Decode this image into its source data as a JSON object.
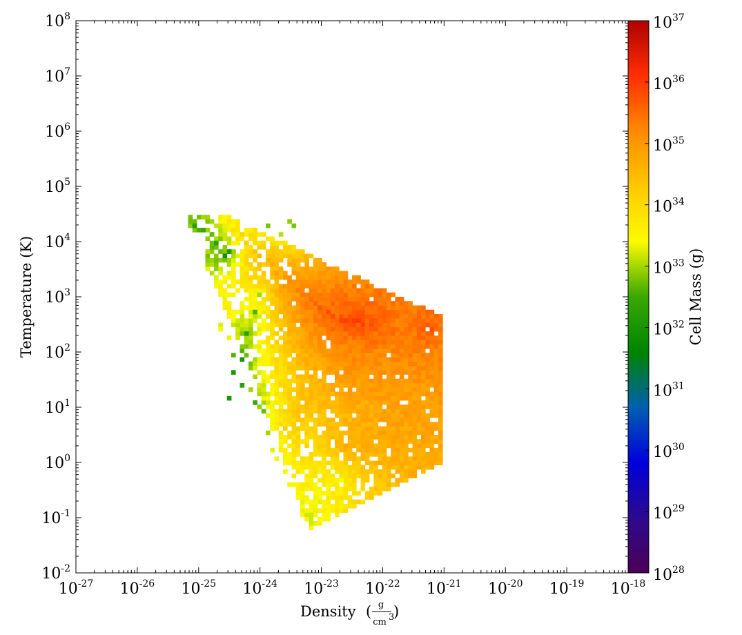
{
  "chart_data": {
    "type": "heatmap",
    "title": "",
    "xlabel": "Density",
    "xunit_numerator": "g",
    "xunit_denominator": "cm",
    "xunit_denominator_sup": "3",
    "ylabel": "Temperature  (K)",
    "colorbar_label": "Cell Mass  (g)",
    "x_scale": "log",
    "y_scale": "log",
    "xlim": [
      1e-27,
      1e-18
    ],
    "ylim": [
      0.01,
      100000000.0
    ],
    "colorbar_lim": [
      1e+28,
      1e+37
    ],
    "colorbar_scale": "log",
    "colormap": "spectral",
    "colormap_stops": [
      "#4b0055",
      "#2c0a8e",
      "#0000dd",
      "#0060b0",
      "#008400",
      "#38a800",
      "#fcfc00",
      "#ffc800",
      "#ff8a00",
      "#ff2e00",
      "#b00000"
    ],
    "x_ticks": [
      {
        "base": "10",
        "exp": "-27"
      },
      {
        "base": "10",
        "exp": "-26"
      },
      {
        "base": "10",
        "exp": "-25"
      },
      {
        "base": "10",
        "exp": "-24"
      },
      {
        "base": "10",
        "exp": "-23"
      },
      {
        "base": "10",
        "exp": "-22"
      },
      {
        "base": "10",
        "exp": "-21"
      },
      {
        "base": "10",
        "exp": "-20"
      },
      {
        "base": "10",
        "exp": "-19"
      },
      {
        "base": "10",
        "exp": "-18"
      }
    ],
    "y_ticks": [
      {
        "base": "10",
        "exp": "-2"
      },
      {
        "base": "10",
        "exp": "-1"
      },
      {
        "base": "10",
        "exp": "0"
      },
      {
        "base": "10",
        "exp": "1"
      },
      {
        "base": "10",
        "exp": "2"
      },
      {
        "base": "10",
        "exp": "3"
      },
      {
        "base": "10",
        "exp": "4"
      },
      {
        "base": "10",
        "exp": "5"
      },
      {
        "base": "10",
        "exp": "6"
      },
      {
        "base": "10",
        "exp": "7"
      },
      {
        "base": "10",
        "exp": "8"
      }
    ],
    "colorbar_ticks": [
      {
        "base": "10",
        "exp": "28"
      },
      {
        "base": "10",
        "exp": "29"
      },
      {
        "base": "10",
        "exp": "30"
      },
      {
        "base": "10",
        "exp": "31"
      },
      {
        "base": "10",
        "exp": "32"
      },
      {
        "base": "10",
        "exp": "33"
      },
      {
        "base": "10",
        "exp": "34"
      },
      {
        "base": "10",
        "exp": "35"
      },
      {
        "base": "10",
        "exp": "36"
      },
      {
        "base": "10",
        "exp": "37"
      }
    ],
    "grid": false,
    "bins": {
      "x_bins": 128,
      "x_range_log": [
        -27,
        -18
      ],
      "y_bins": 128,
      "y_range_log": [
        -2,
        8
      ]
    },
    "cells": [
      [
        -25.07,
        4.28,
        32.2
      ],
      [
        -24.9,
        4.2,
        32.5
      ],
      [
        -24.78,
        4.1,
        32.7
      ],
      [
        -24.7,
        3.95,
        32.3
      ],
      [
        -24.6,
        3.75,
        31.9
      ],
      [
        -24.48,
        3.85,
        32.1
      ],
      [
        -24.55,
        4.3,
        33.3
      ],
      [
        -24.47,
        4.4,
        33.8
      ],
      [
        -24.4,
        4.2,
        33.9
      ],
      [
        -24.3,
        4.1,
        34.1
      ],
      [
        -24.2,
        3.95,
        34.2
      ],
      [
        -24.1,
        3.85,
        34.4
      ],
      [
        -24.0,
        3.75,
        34.5
      ],
      [
        -23.9,
        3.65,
        34.6
      ],
      [
        -23.8,
        3.55,
        34.7
      ],
      [
        -23.7,
        3.45,
        34.9
      ],
      [
        -23.6,
        3.35,
        35.0
      ],
      [
        -23.5,
        3.25,
        35.2
      ],
      [
        -23.4,
        3.15,
        35.3
      ],
      [
        -23.3,
        3.05,
        35.4
      ],
      [
        -23.2,
        2.95,
        35.5
      ],
      [
        -23.1,
        2.85,
        35.6
      ],
      [
        -23.0,
        2.8,
        35.7
      ],
      [
        -22.9,
        2.75,
        35.8
      ],
      [
        -22.8,
        2.65,
        35.8
      ],
      [
        -22.7,
        2.6,
        35.9
      ],
      [
        -22.6,
        2.55,
        35.95
      ],
      [
        -22.5,
        2.55,
        36.0
      ],
      [
        -22.4,
        2.55,
        36.0
      ],
      [
        -22.3,
        2.5,
        35.9
      ],
      [
        -22.2,
        2.5,
        35.8
      ],
      [
        -22.1,
        2.55,
        35.7
      ],
      [
        -22.0,
        2.6,
        35.6
      ],
      [
        -21.9,
        2.6,
        35.5
      ],
      [
        -21.8,
        2.6,
        35.4
      ],
      [
        -21.7,
        2.55,
        35.3
      ],
      [
        -21.6,
        2.55,
        35.4
      ],
      [
        -21.5,
        2.5,
        35.5
      ],
      [
        -21.4,
        2.45,
        35.6
      ],
      [
        -21.3,
        2.5,
        35.7
      ],
      [
        -21.2,
        2.45,
        35.8
      ],
      [
        -21.12,
        2.4,
        35.5
      ],
      [
        -21.05,
        2.25,
        35.3
      ],
      [
        -21.05,
        2.1,
        35.1
      ],
      [
        -24.0,
        3.05,
        33.0
      ],
      [
        -24.1,
        2.7,
        32.6
      ],
      [
        -24.2,
        2.35,
        32.3
      ],
      [
        -24.3,
        1.9,
        32.0
      ],
      [
        -24.4,
        1.6,
        32.1
      ],
      [
        -24.5,
        1.2,
        32.0
      ],
      [
        -24.3,
        1.4,
        32.3
      ],
      [
        -24.1,
        1.1,
        32.5
      ],
      [
        -23.95,
        0.9,
        32.7
      ],
      [
        -23.9,
        0.5,
        33.0
      ],
      [
        -23.8,
        0.25,
        33.3
      ],
      [
        -23.7,
        0.05,
        33.5
      ],
      [
        -23.6,
        -0.2,
        33.6
      ],
      [
        -23.5,
        -0.4,
        33.5
      ],
      [
        -23.4,
        -0.6,
        33.4
      ],
      [
        -23.3,
        -0.75,
        33.3
      ],
      [
        -23.2,
        -0.95,
        33.2
      ],
      [
        -23.15,
        -1.1,
        33.2
      ],
      [
        -23.05,
        -0.7,
        33.3
      ],
      [
        -22.9,
        -0.45,
        33.5
      ],
      [
        -22.7,
        -0.3,
        33.4
      ],
      [
        -23.6,
        0.6,
        34.2
      ],
      [
        -23.4,
        0.9,
        34.4
      ],
      [
        -23.2,
        1.2,
        34.6
      ],
      [
        -23.0,
        1.5,
        34.7
      ],
      [
        -22.8,
        1.8,
        34.9
      ],
      [
        -22.6,
        2.1,
        35.1
      ],
      [
        -22.4,
        2.0,
        35.2
      ],
      [
        -22.2,
        1.9,
        35.1
      ],
      [
        -22.0,
        1.7,
        35.0
      ],
      [
        -21.8,
        1.3,
        34.9
      ],
      [
        -21.6,
        1.0,
        34.9
      ],
      [
        -21.5,
        0.55,
        34.8
      ],
      [
        -21.4,
        0.9,
        34.9
      ],
      [
        -21.9,
        0.45,
        34.8
      ],
      [
        -22.1,
        0.45,
        34.8
      ],
      [
        -22.3,
        0.4,
        34.7
      ],
      [
        -22.6,
        0.3,
        34.8
      ],
      [
        -23.65,
        4.15,
        33.1
      ],
      [
        -23.55,
        4.35,
        32.9
      ],
      [
        -23.45,
        4.25,
        32.8
      ],
      [
        -23.9,
        4.3,
        32.8
      ]
    ]
  }
}
